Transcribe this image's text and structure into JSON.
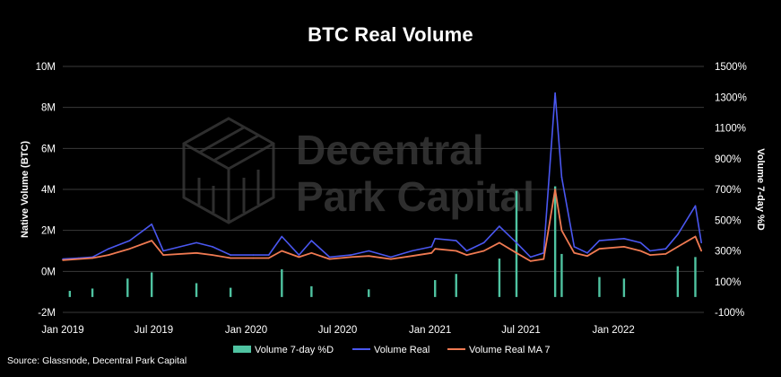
{
  "title": "BTC Real Volume",
  "source": "Source: Glassnode, Decentral Park Capital",
  "watermark": {
    "line1": "Decentral",
    "line2": "Park Capital"
  },
  "colors": {
    "background": "#000000",
    "grid": "#3a3a3a",
    "volume_pct": "#4fc3a1",
    "volume_real": "#4a57f0",
    "volume_ma": "#f07a52",
    "watermark": "#2e2e2e"
  },
  "chart_data": {
    "type": "line",
    "x_range": [
      "2019-01-01",
      "2022-06-30"
    ],
    "x_ticks": [
      "Jan 2019",
      "Jul 2019",
      "Jan 2020",
      "Jul 2020",
      "Jan 2021",
      "Jul 2021",
      "Jan 2022"
    ],
    "y_left": {
      "label": "Native Volume (BTC)",
      "ticks": [
        "-2M",
        "0M",
        "2M",
        "4M",
        "6M",
        "8M",
        "10M"
      ],
      "lim": [
        -2000000,
        10000000
      ]
    },
    "y_right": {
      "label": "Volume 7-day %D",
      "ticks": [
        "-100%",
        "100%",
        "300%",
        "500%",
        "700%",
        "900%",
        "1100%",
        "1300%",
        "1500%"
      ],
      "lim": [
        -100,
        1500
      ]
    },
    "grid": true,
    "legend_position": "bottom",
    "series": [
      {
        "name": "Volume 7-day %D",
        "type": "bar",
        "axis": "right",
        "x": [
          "2019-01-15",
          "2019-03-01",
          "2019-05-10",
          "2019-06-27",
          "2019-09-24",
          "2019-12-01",
          "2020-03-12",
          "2020-05-10",
          "2020-09-01",
          "2021-01-11",
          "2021-02-22",
          "2021-05-19",
          "2021-06-22",
          "2021-09-07",
          "2021-09-20",
          "2021-12-04",
          "2022-01-22",
          "2022-05-09",
          "2022-06-13"
        ],
        "values": [
          40,
          55,
          120,
          160,
          90,
          60,
          180,
          70,
          50,
          110,
          150,
          250,
          690,
          720,
          280,
          130,
          120,
          200,
          260
        ]
      },
      {
        "name": "Volume Real",
        "type": "line",
        "axis": "left",
        "x": [
          "2019-01-01",
          "2019-02-01",
          "2019-03-01",
          "2019-04-02",
          "2019-05-14",
          "2019-06-27",
          "2019-07-20",
          "2019-09-24",
          "2019-10-26",
          "2019-12-01",
          "2020-01-15",
          "2020-02-15",
          "2020-03-12",
          "2020-04-15",
          "2020-05-10",
          "2020-06-15",
          "2020-07-27",
          "2020-09-01",
          "2020-10-15",
          "2020-11-26",
          "2021-01-04",
          "2021-01-11",
          "2021-02-22",
          "2021-03-15",
          "2021-04-18",
          "2021-05-19",
          "2021-06-22",
          "2021-07-20",
          "2021-08-15",
          "2021-09-07",
          "2021-09-20",
          "2021-10-15",
          "2021-11-10",
          "2021-12-04",
          "2022-01-22",
          "2022-02-24",
          "2022-03-15",
          "2022-04-15",
          "2022-05-09",
          "2022-06-13",
          "2022-06-25"
        ],
        "values": [
          600000,
          650000,
          700000,
          1100000,
          1500000,
          2300000,
          1000000,
          1400000,
          1200000,
          800000,
          800000,
          800000,
          1700000,
          800000,
          1500000,
          700000,
          800000,
          1000000,
          700000,
          1000000,
          1200000,
          1600000,
          1500000,
          1000000,
          1400000,
          2200000,
          1400000,
          700000,
          900000,
          8700000,
          4600000,
          1200000,
          900000,
          1500000,
          1600000,
          1400000,
          1000000,
          1100000,
          1800000,
          3200000,
          1400000
        ]
      },
      {
        "name": "Volume Real MA 7",
        "type": "line",
        "axis": "left",
        "x": [
          "2019-01-01",
          "2019-02-01",
          "2019-03-01",
          "2019-04-02",
          "2019-05-14",
          "2019-06-27",
          "2019-07-20",
          "2019-09-24",
          "2019-10-26",
          "2019-12-01",
          "2020-01-15",
          "2020-02-15",
          "2020-03-12",
          "2020-04-15",
          "2020-05-10",
          "2020-06-15",
          "2020-07-27",
          "2020-09-01",
          "2020-10-15",
          "2020-11-26",
          "2021-01-04",
          "2021-01-11",
          "2021-02-22",
          "2021-03-15",
          "2021-04-18",
          "2021-05-19",
          "2021-06-22",
          "2021-07-20",
          "2021-08-15",
          "2021-09-07",
          "2021-09-20",
          "2021-10-15",
          "2021-11-10",
          "2021-12-04",
          "2022-01-22",
          "2022-02-24",
          "2022-03-15",
          "2022-04-15",
          "2022-05-09",
          "2022-06-13",
          "2022-06-25"
        ],
        "values": [
          550000,
          600000,
          650000,
          800000,
          1100000,
          1500000,
          800000,
          900000,
          800000,
          650000,
          650000,
          650000,
          1000000,
          700000,
          900000,
          600000,
          700000,
          750000,
          600000,
          750000,
          900000,
          1100000,
          1000000,
          800000,
          1000000,
          1400000,
          900000,
          500000,
          600000,
          4000000,
          2000000,
          900000,
          750000,
          1100000,
          1200000,
          1000000,
          800000,
          850000,
          1200000,
          1700000,
          1000000
        ]
      }
    ]
  },
  "legend": [
    {
      "label": "Volume 7-day %D",
      "shape": "rect"
    },
    {
      "label": "Volume Real",
      "shape": "line"
    },
    {
      "label": "Volume Real MA 7",
      "shape": "line"
    }
  ]
}
